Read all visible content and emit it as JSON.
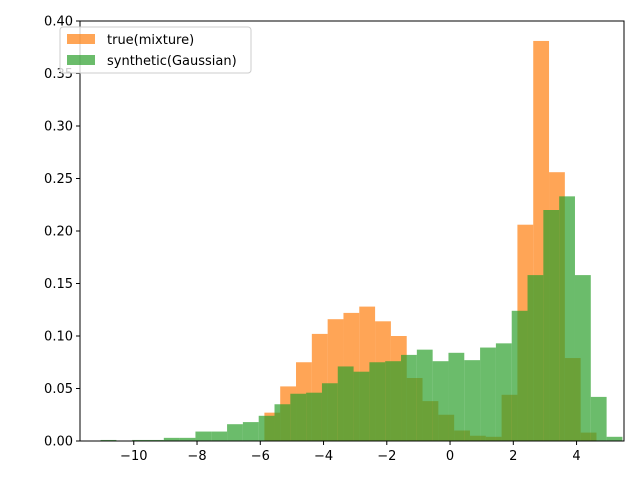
{
  "chart_data": {
    "type": "bar",
    "title": "",
    "xlabel": "",
    "ylabel": "",
    "xlim": [
      -11.7,
      5.5
    ],
    "ylim": [
      0,
      0.4
    ],
    "xticks": [
      "−10",
      "−8",
      "−6",
      "−4",
      "−2",
      "0",
      "2",
      "4"
    ],
    "xtick_values": [
      -10,
      -8,
      -6,
      -4,
      -2,
      0,
      2,
      4
    ],
    "yticks": [
      "0.00",
      "0.05",
      "0.10",
      "0.15",
      "0.20",
      "0.25",
      "0.30",
      "0.35",
      "0.40"
    ],
    "ytick_values": [
      0,
      0.05,
      0.1,
      0.15,
      0.2,
      0.25,
      0.3,
      0.35,
      0.4
    ],
    "grid": false,
    "legend_position": "upper-left",
    "series": [
      {
        "name": "true(mixture)",
        "color": "#ff7f0e",
        "alpha": 0.7,
        "bins": [
          [
            -5.87,
            -5.37,
            0.027
          ],
          [
            -5.37,
            -4.87,
            0.052
          ],
          [
            -4.87,
            -4.37,
            0.075
          ],
          [
            -4.37,
            -3.87,
            0.102
          ],
          [
            -3.87,
            -3.37,
            0.116
          ],
          [
            -3.37,
            -2.87,
            0.122
          ],
          [
            -2.87,
            -2.37,
            0.128
          ],
          [
            -2.37,
            -1.87,
            0.114
          ],
          [
            -1.87,
            -1.37,
            0.1
          ],
          [
            -1.37,
            -0.87,
            0.06
          ],
          [
            -0.87,
            -0.37,
            0.038
          ],
          [
            -0.37,
            0.13,
            0.025
          ],
          [
            0.13,
            0.63,
            0.01
          ],
          [
            0.63,
            1.13,
            0.005
          ],
          [
            1.13,
            1.63,
            0.004
          ],
          [
            1.63,
            2.13,
            0.044
          ],
          [
            2.13,
            2.63,
            0.206
          ],
          [
            2.63,
            3.13,
            0.381
          ],
          [
            3.13,
            3.63,
            0.256
          ],
          [
            3.63,
            4.13,
            0.079
          ],
          [
            4.13,
            4.63,
            0.008
          ]
        ]
      },
      {
        "name": "synthetic(Gaussian)",
        "color": "#2ca02c",
        "alpha": 0.7,
        "bins": [
          [
            -11.05,
            -10.55,
            0.001
          ],
          [
            -10.55,
            -10.05,
            0.0
          ],
          [
            -10.05,
            -9.55,
            0.001
          ],
          [
            -9.55,
            -9.05,
            0.001
          ],
          [
            -9.05,
            -8.55,
            0.003
          ],
          [
            -8.55,
            -8.05,
            0.003
          ],
          [
            -8.05,
            -7.55,
            0.009
          ],
          [
            -7.55,
            -7.05,
            0.009
          ],
          [
            -7.05,
            -6.55,
            0.016
          ],
          [
            -6.55,
            -6.05,
            0.018
          ],
          [
            -6.05,
            -5.55,
            0.024
          ],
          [
            -5.55,
            -5.05,
            0.035
          ],
          [
            -5.05,
            -4.55,
            0.045
          ],
          [
            -4.55,
            -4.05,
            0.046
          ],
          [
            -4.05,
            -3.55,
            0.055
          ],
          [
            -3.55,
            -3.05,
            0.071
          ],
          [
            -3.05,
            -2.55,
            0.066
          ],
          [
            -2.55,
            -2.05,
            0.075
          ],
          [
            -2.05,
            -1.55,
            0.076
          ],
          [
            -1.55,
            -1.05,
            0.082
          ],
          [
            -1.05,
            -0.55,
            0.087
          ],
          [
            -0.55,
            -0.05,
            0.076
          ],
          [
            -0.05,
            0.45,
            0.084
          ],
          [
            0.45,
            0.95,
            0.077
          ],
          [
            0.95,
            1.45,
            0.089
          ],
          [
            1.45,
            1.95,
            0.093
          ],
          [
            1.95,
            2.45,
            0.124
          ],
          [
            2.45,
            2.95,
            0.158
          ],
          [
            2.95,
            3.45,
            0.22
          ],
          [
            3.45,
            3.95,
            0.233
          ],
          [
            3.95,
            4.45,
            0.158
          ],
          [
            4.45,
            4.95,
            0.042
          ],
          [
            4.95,
            5.45,
            0.004
          ]
        ]
      }
    ]
  }
}
